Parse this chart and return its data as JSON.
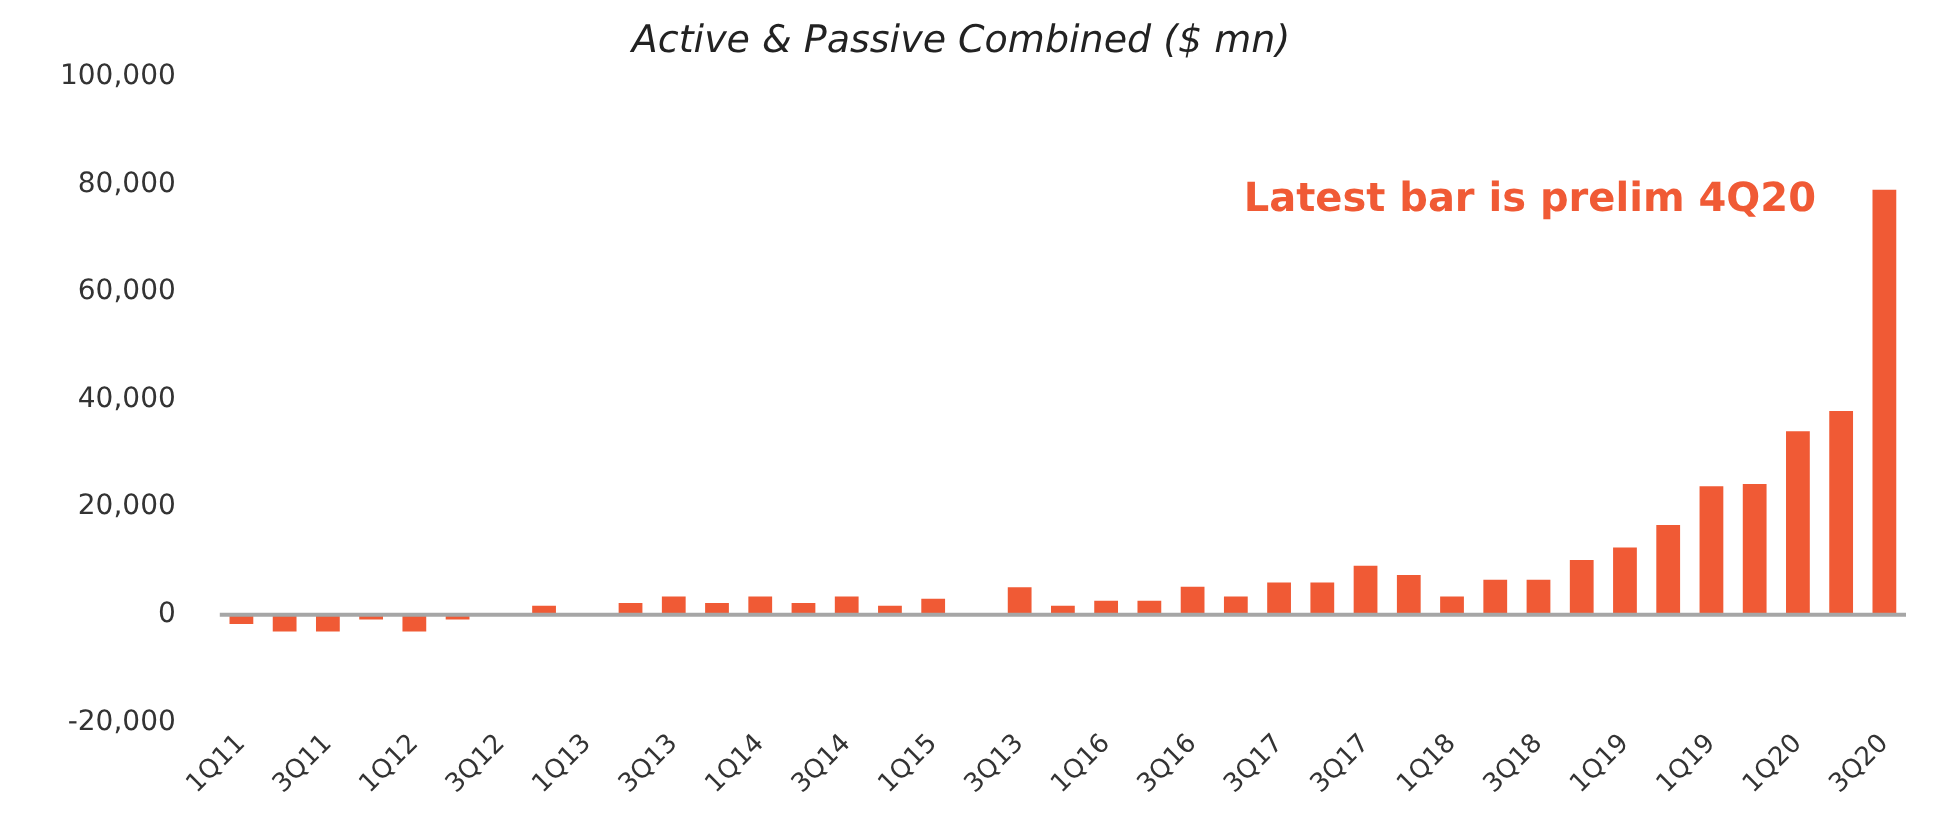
{
  "chart_data": {
    "type": "bar",
    "title": "Active & Passive Combined ($ mn)",
    "categories": [
      "1Q11",
      null,
      "3Q11",
      null,
      "1Q12",
      null,
      "3Q12",
      null,
      "1Q13",
      null,
      "3Q13",
      null,
      "1Q14",
      null,
      "3Q14",
      null,
      "1Q15",
      null,
      "3Q13",
      null,
      "1Q16",
      null,
      "3Q16",
      null,
      "3Q17",
      null,
      "3Q17",
      null,
      "1Q18",
      null,
      "3Q18",
      null,
      "1Q19",
      null,
      "1Q19",
      null,
      "1Q20",
      null,
      "3Q20"
    ],
    "values": [
      -1700,
      -3100,
      -3100,
      -900,
      -3100,
      -900,
      null,
      1700,
      null,
      2200,
      3400,
      2200,
      3400,
      2200,
      3400,
      1700,
      3000,
      null,
      5100,
      1700,
      2600,
      2600,
      5200,
      3400,
      6000,
      6000,
      9100,
      7400,
      3400,
      6500,
      6500,
      10200,
      12500,
      16700,
      23900,
      24300,
      34100,
      37900,
      79000
    ],
    "color": "#f05a35",
    "ylim": [
      -20000,
      100000
    ],
    "yticks": [
      {
        "value": -20000,
        "label": "-20,000"
      },
      {
        "value": 0,
        "label": "0"
      },
      {
        "value": 20000,
        "label": "20,000"
      },
      {
        "value": 40000,
        "label": "40,000"
      },
      {
        "value": 60000,
        "label": "60,000"
      },
      {
        "value": 80000,
        "label": "80,000"
      },
      {
        "value": 100000,
        "label": "100,000"
      }
    ],
    "annotations": [
      "Latest bar is prelim 4Q20"
    ],
    "ref_lines": [
      {
        "axis": "y",
        "value": 0,
        "color": "#a6a6a6"
      }
    ],
    "grid": false,
    "legend": false
  }
}
